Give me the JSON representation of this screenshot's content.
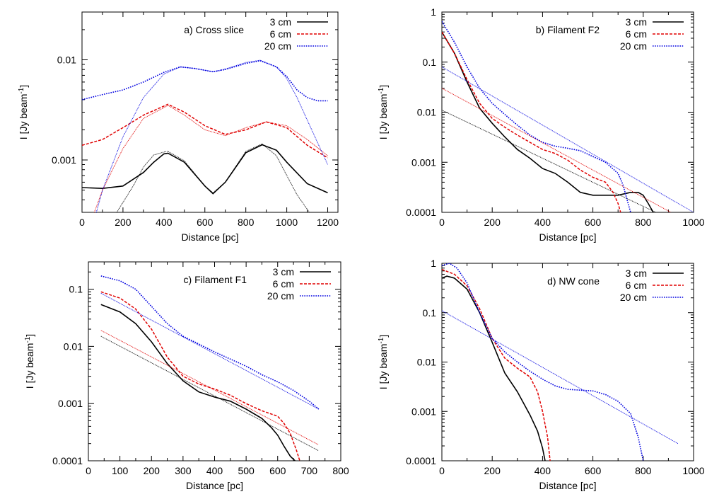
{
  "colors": {
    "3 cm": "#000000",
    "6 cm": "#e00000",
    "20 cm": "#0000e0"
  },
  "chart_data": [
    {
      "type": "line",
      "title": "a) Cross slice",
      "xlabel": "Distance [pc]",
      "ylabel": "I [Jy beam-1]",
      "xscale": "linear",
      "yscale": "log",
      "xlim": [
        0,
        1250
      ],
      "ylim": [
        0.0003,
        0.03
      ],
      "xticks": [
        0,
        200,
        400,
        600,
        800,
        1000,
        1200
      ],
      "xtick_labels": [
        "0",
        "200",
        "400",
        "600",
        "800",
        "1000",
        "1200"
      ],
      "yticks": [
        0.001,
        0.01
      ],
      "ytick_labels": [
        "0.001",
        "0.01"
      ],
      "legend": {
        "placement": "top-right",
        "entries": [
          "3 cm",
          "6 cm",
          "20 cm"
        ]
      },
      "series": [
        {
          "name": "3 cm",
          "style": "solid",
          "x": [
            0,
            100,
            200,
            300,
            350,
            400,
            420,
            500,
            600,
            640,
            700,
            800,
            880,
            950,
            1000,
            1100,
            1200
          ],
          "y": [
            0.00053,
            0.00052,
            0.00055,
            0.00075,
            0.00095,
            0.00115,
            0.00117,
            0.00095,
            0.00055,
            0.00046,
            0.0006,
            0.00118,
            0.00142,
            0.00125,
            0.00095,
            0.00058,
            0.00047
          ]
        },
        {
          "name": "",
          "style": "fit",
          "x": [
            170,
            250,
            300,
            350,
            400,
            420,
            500,
            600,
            640,
            700,
            800,
            880,
            950,
            1000,
            1050,
            1110
          ],
          "y": [
            0.0003,
            0.00055,
            0.00085,
            0.00112,
            0.0012,
            0.00122,
            0.00098,
            0.00055,
            0.00047,
            0.0006,
            0.00122,
            0.00145,
            0.0011,
            0.0007,
            0.00045,
            0.0003
          ]
        },
        {
          "name": "6 cm",
          "style": "dashed",
          "x": [
            0,
            100,
            200,
            300,
            420,
            500,
            600,
            700,
            800,
            900,
            1000,
            1100,
            1200
          ],
          "y": [
            0.0014,
            0.0016,
            0.0021,
            0.0028,
            0.0036,
            0.003,
            0.0022,
            0.0018,
            0.002,
            0.0024,
            0.0021,
            0.0014,
            0.00105
          ]
        },
        {
          "name": "",
          "style": "fit",
          "x": [
            60,
            100,
            200,
            300,
            420,
            500,
            600,
            700,
            800,
            900,
            1000,
            1100,
            1200
          ],
          "y": [
            0.0003,
            0.0005,
            0.0013,
            0.0026,
            0.0035,
            0.0028,
            0.002,
            0.00175,
            0.0021,
            0.0024,
            0.0022,
            0.0016,
            0.0011
          ]
        },
        {
          "name": "20 cm",
          "style": "dotted",
          "x": [
            0,
            100,
            200,
            300,
            400,
            480,
            550,
            640,
            700,
            800,
            870,
            950,
            1000,
            1050,
            1100,
            1150,
            1200
          ],
          "y": [
            0.004,
            0.0045,
            0.005,
            0.006,
            0.0075,
            0.0085,
            0.0082,
            0.0076,
            0.008,
            0.0092,
            0.0098,
            0.0085,
            0.0068,
            0.005,
            0.0042,
            0.0039,
            0.0039
          ]
        },
        {
          "name": "",
          "style": "fit",
          "x": [
            70,
            100,
            200,
            300,
            400,
            480,
            550,
            640,
            700,
            800,
            870,
            950,
            1000,
            1050,
            1100,
            1150,
            1200
          ],
          "y": [
            0.0003,
            0.0005,
            0.0017,
            0.0042,
            0.0072,
            0.0085,
            0.0082,
            0.0076,
            0.0081,
            0.0094,
            0.0099,
            0.0085,
            0.0065,
            0.0042,
            0.0025,
            0.0015,
            0.0009
          ]
        }
      ]
    },
    {
      "type": "line",
      "title": "b) Filament F2",
      "xlabel": "Distance [pc]",
      "ylabel": "I [Jy beam-1]",
      "xscale": "linear",
      "yscale": "log",
      "xlim": [
        0,
        1000
      ],
      "ylim": [
        0.0001,
        1
      ],
      "xticks": [
        0,
        200,
        400,
        600,
        800,
        1000
      ],
      "xtick_labels": [
        "0",
        "200",
        "400",
        "600",
        "800",
        "1000"
      ],
      "yticks": [
        0.0001,
        0.001,
        0.01,
        0.1,
        1
      ],
      "ytick_labels": [
        "0.0001",
        "0.001",
        "0.01",
        "0.1",
        "1"
      ],
      "legend": {
        "placement": "top-right",
        "entries": [
          "3 cm",
          "6 cm",
          "20 cm"
        ]
      },
      "series": [
        {
          "name": "3 cm",
          "style": "solid",
          "x": [
            0,
            50,
            100,
            150,
            200,
            250,
            300,
            350,
            400,
            450,
            500,
            550,
            600,
            650,
            700,
            750,
            780,
            800,
            820,
            840
          ],
          "y": [
            0.4,
            0.15,
            0.04,
            0.012,
            0.006,
            0.0032,
            0.0018,
            0.0012,
            0.00075,
            0.0006,
            0.0004,
            0.00025,
            0.00022,
            0.00022,
            0.00022,
            0.00025,
            0.00025,
            0.00022,
            0.00015,
            0.0001
          ]
        },
        {
          "name": "",
          "style": "fit",
          "x": [
            0,
            850
          ],
          "y": [
            0.011,
            0.0001
          ]
        },
        {
          "name": "6 cm",
          "style": "dashed",
          "x": [
            0,
            50,
            100,
            150,
            200,
            250,
            300,
            350,
            400,
            450,
            500,
            550,
            600,
            650,
            680,
            700,
            710
          ],
          "y": [
            0.4,
            0.15,
            0.045,
            0.015,
            0.0075,
            0.005,
            0.0035,
            0.0025,
            0.0018,
            0.0015,
            0.0011,
            0.0007,
            0.0005,
            0.0004,
            0.00025,
            0.00015,
            0.0001
          ]
        },
        {
          "name": "",
          "style": "fit",
          "x": [
            0,
            910
          ],
          "y": [
            0.03,
            0.0001
          ]
        },
        {
          "name": "20 cm",
          "style": "dotted",
          "x": [
            0,
            50,
            100,
            150,
            200,
            250,
            300,
            350,
            400,
            450,
            500,
            550,
            600,
            650,
            700,
            720,
            740,
            750
          ],
          "y": [
            0.65,
            0.25,
            0.08,
            0.03,
            0.015,
            0.009,
            0.0055,
            0.0035,
            0.0025,
            0.0021,
            0.0019,
            0.0017,
            0.0013,
            0.001,
            0.0006,
            0.00035,
            0.00015,
            0.0001
          ]
        },
        {
          "name": "",
          "style": "fit",
          "x": [
            0,
            1000
          ],
          "y": [
            0.08,
            0.0001
          ]
        }
      ]
    },
    {
      "type": "line",
      "title": "c) Filament F1",
      "xlabel": "Distance [pc]",
      "ylabel": "I [Jy beam-1]",
      "xscale": "linear",
      "yscale": "log",
      "xlim": [
        0,
        800
      ],
      "ylim": [
        0.0001,
        0.3
      ],
      "xticks": [
        0,
        100,
        200,
        300,
        400,
        500,
        600,
        700,
        800
      ],
      "xtick_labels": [
        "0",
        "100",
        "200",
        "300",
        "400",
        "500",
        "600",
        "700",
        "800"
      ],
      "yticks": [
        0.0001,
        0.001,
        0.01,
        0.1
      ],
      "ytick_labels": [
        "0.0001",
        "0.001",
        "0.01",
        "0.1"
      ],
      "legend": {
        "placement": "top-right",
        "entries": [
          "3 cm",
          "6 cm",
          "20 cm"
        ]
      },
      "series": [
        {
          "name": "3 cm",
          "style": "solid",
          "x": [
            40,
            100,
            150,
            200,
            250,
            300,
            350,
            400,
            450,
            500,
            550,
            580,
            600,
            620,
            640,
            655
          ],
          "y": [
            0.054,
            0.04,
            0.025,
            0.012,
            0.005,
            0.0025,
            0.0016,
            0.0013,
            0.0011,
            0.0008,
            0.00055,
            0.00038,
            0.00028,
            0.00018,
            0.00012,
            0.0001
          ]
        },
        {
          "name": "",
          "style": "fit",
          "x": [
            40,
            730
          ],
          "y": [
            0.015,
            0.00015
          ]
        },
        {
          "name": "6 cm",
          "style": "dashed",
          "x": [
            40,
            100,
            150,
            200,
            250,
            300,
            350,
            400,
            450,
            500,
            550,
            600,
            620,
            640,
            660,
            670
          ],
          "y": [
            0.09,
            0.07,
            0.045,
            0.02,
            0.0065,
            0.003,
            0.0022,
            0.0018,
            0.0014,
            0.001,
            0.00075,
            0.0006,
            0.00045,
            0.0003,
            0.00015,
            0.0001
          ]
        },
        {
          "name": "",
          "style": "fit",
          "x": [
            40,
            730
          ],
          "y": [
            0.019,
            0.00019
          ]
        },
        {
          "name": "20 cm",
          "style": "dotted",
          "x": [
            40,
            100,
            150,
            200,
            250,
            300,
            350,
            400,
            450,
            500,
            550,
            600,
            650,
            700,
            730
          ],
          "y": [
            0.17,
            0.14,
            0.1,
            0.05,
            0.025,
            0.015,
            0.011,
            0.008,
            0.006,
            0.0045,
            0.0032,
            0.0024,
            0.0017,
            0.0011,
            0.0008
          ]
        },
        {
          "name": "",
          "style": "fit",
          "x": [
            40,
            730
          ],
          "y": [
            0.085,
            0.0008
          ]
        }
      ]
    },
    {
      "type": "line",
      "title": "d) NW cone",
      "xlabel": "Distance [pc]",
      "ylabel": "I [Jy beam-1]",
      "xscale": "linear",
      "yscale": "log",
      "xlim": [
        0,
        1000
      ],
      "ylim": [
        0.0001,
        1
      ],
      "xticks": [
        0,
        200,
        400,
        600,
        800,
        1000
      ],
      "xtick_labels": [
        "0",
        "200",
        "400",
        "600",
        "800",
        "1000"
      ],
      "yticks": [
        0.0001,
        0.001,
        0.01,
        0.1,
        1
      ],
      "ytick_labels": [
        "0.0001",
        "0.001",
        "0.01",
        "0.1",
        "1"
      ],
      "legend": {
        "placement": "top-right",
        "entries": [
          "3 cm",
          "6 cm",
          "20 cm"
        ]
      },
      "series": [
        {
          "name": "3 cm",
          "style": "solid",
          "x": [
            0,
            20,
            50,
            100,
            150,
            200,
            250,
            300,
            350,
            380,
            400,
            410
          ],
          "y": [
            0.5,
            0.55,
            0.5,
            0.3,
            0.1,
            0.025,
            0.006,
            0.0025,
            0.00085,
            0.0004,
            0.00018,
            0.0001
          ]
        },
        {
          "name": "6 cm",
          "style": "dashed",
          "x": [
            0,
            50,
            100,
            150,
            200,
            250,
            300,
            350,
            380,
            400,
            420,
            430
          ],
          "y": [
            0.75,
            0.6,
            0.35,
            0.12,
            0.03,
            0.012,
            0.0075,
            0.005,
            0.0025,
            0.001,
            0.0003,
            0.0001
          ]
        },
        {
          "name": "20 cm",
          "style": "dotted",
          "x": [
            0,
            30,
            60,
            100,
            150,
            200,
            250,
            300,
            350,
            400,
            450,
            500,
            550,
            600,
            650,
            700,
            750,
            780,
            800
          ],
          "y": [
            0.9,
            1.0,
            0.8,
            0.4,
            0.1,
            0.03,
            0.016,
            0.01,
            0.0065,
            0.0045,
            0.0033,
            0.0028,
            0.0027,
            0.0026,
            0.0022,
            0.0016,
            0.0009,
            0.0003,
            0.0001
          ]
        },
        {
          "name": "",
          "style": "fit",
          "x": [
            0,
            940
          ],
          "y": [
            0.11,
            0.00022
          ]
        }
      ]
    }
  ]
}
